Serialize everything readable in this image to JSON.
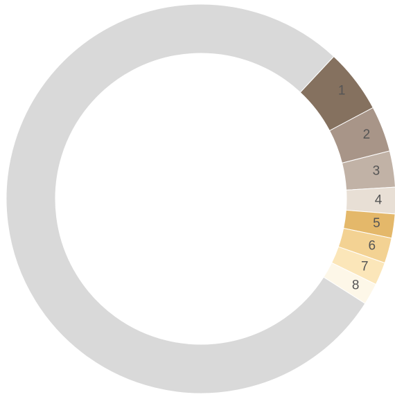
{
  "chart_data": {
    "type": "donut",
    "categories": [
      "1",
      "2",
      "3",
      "4",
      "5",
      "6",
      "7",
      "8",
      null
    ],
    "values": [
      5.3,
      3.8,
      3.0,
      2.2,
      2.0,
      2.1,
      1.9,
      1.8,
      77.9
    ],
    "colors": [
      "#85715f",
      "#a89588",
      "#c1b2a6",
      "#e8dfd5",
      "#e4b86a",
      "#f3d293",
      "#fbe6b9",
      "#fdf7e8",
      "#d9d9d9"
    ]
  }
}
